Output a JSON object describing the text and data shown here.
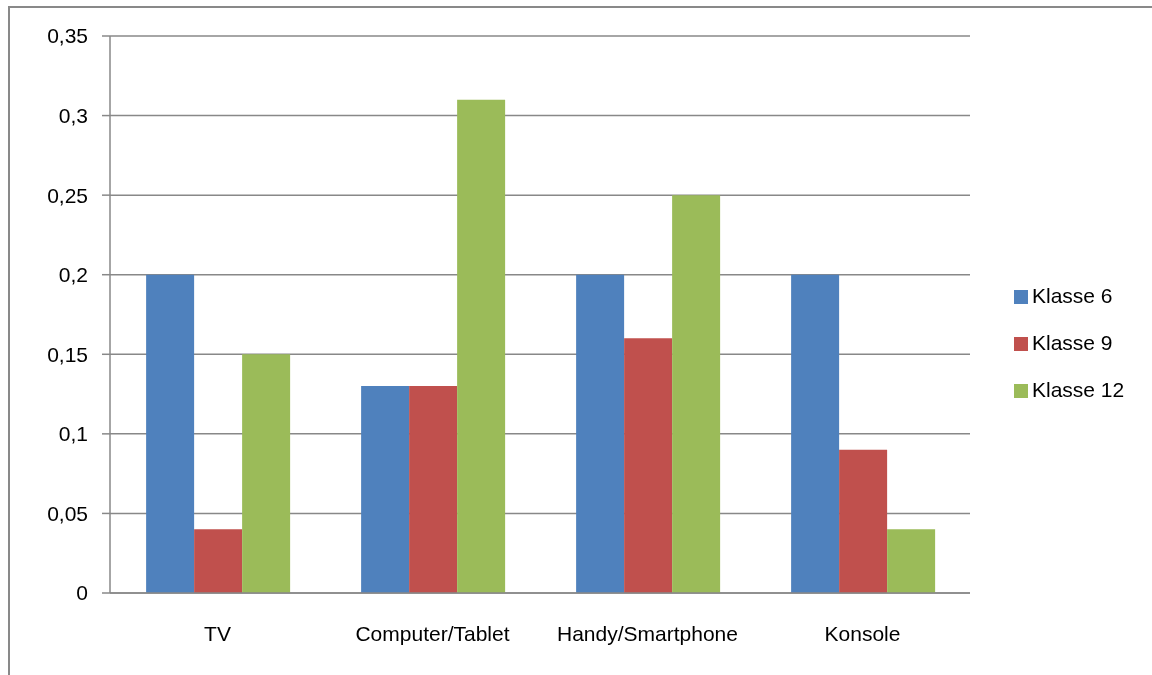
{
  "chart_data": {
    "type": "bar",
    "categories": [
      "TV",
      "Computer/Tablet",
      "Handy/Smartphone",
      "Konsole"
    ],
    "series": [
      {
        "name": "Klasse 6",
        "color": "#4f81bd",
        "values": [
          0.2,
          0.13,
          0.2,
          0.2
        ]
      },
      {
        "name": "Klasse 9",
        "color": "#c0504d",
        "values": [
          0.04,
          0.13,
          0.16,
          0.09
        ]
      },
      {
        "name": "Klasse 12",
        "color": "#9bbb59",
        "values": [
          0.15,
          0.31,
          0.25,
          0.04
        ]
      }
    ],
    "ylim": [
      0,
      0.35
    ],
    "yticks": [
      0,
      {
        "value": 0.05,
        "label": "0,05"
      },
      {
        "value": 0.1,
        "label": "0,1"
      },
      {
        "value": 0.15,
        "label": "0,15"
      },
      {
        "value": 0.2,
        "label": "0,2"
      },
      {
        "value": 0.25,
        "label": "0,25"
      },
      {
        "value": 0.3,
        "label": "0,3"
      },
      {
        "value": 0.35,
        "label": "0,35"
      }
    ],
    "grid": "y",
    "legend": "right"
  }
}
